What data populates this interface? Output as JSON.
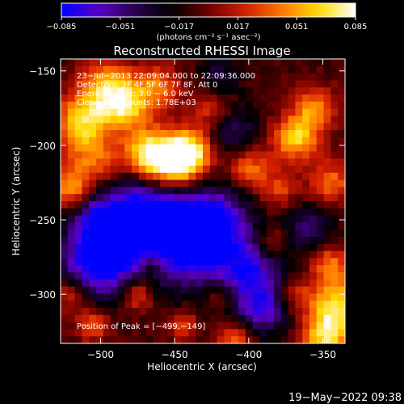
{
  "chart_data": {
    "type": "heatmap",
    "title": "Reconstructed RHESSI Image",
    "xlabel": "Heliocentric X (arcsec)",
    "ylabel": "Heliocentric Y (arcsec)",
    "xlim": [
      -527,
      -335
    ],
    "ylim": [
      -333,
      -142
    ],
    "x_ticks": [
      -500,
      -450,
      -400,
      -350
    ],
    "x_tick_labels": [
      "−500",
      "−450",
      "−400",
      "−350"
    ],
    "y_ticks": [
      -150,
      -200,
      -250,
      -300
    ],
    "y_tick_labels": [
      "−150",
      "−200",
      "−250",
      "−300"
    ],
    "colorbar": {
      "range": [
        -0.085,
        0.085
      ],
      "ticks": [
        -0.085,
        -0.051,
        -0.017,
        0.017,
        0.051,
        0.085
      ],
      "tick_labels": [
        "−0.085",
        "−0.051",
        "−0.017",
        "0.017",
        "0.051",
        "0.085"
      ],
      "label": "(photons cm⁻² s⁻¹ asec⁻²)",
      "colors": [
        "#0000ff",
        "#5a00c8",
        "#2a0050",
        "#000000",
        "#6e0000",
        "#d21e00",
        "#ff7800",
        "#ffdc00",
        "#ffffff"
      ]
    },
    "annotations": [
      "23−Jul−2013 22:09:04.000 to 22:09:36.000",
      "Detectors: 3F 4F 5F 6F 7F 8F, Att 0",
      "Energy Range: 3.0 − 6.0 keV",
      "Clean    Total counts: 1.78E+03"
    ],
    "peak_label": "Position of Peak = [−499,−149]",
    "peak": [
      -499,
      -149
    ],
    "hot_spots": [
      {
        "x": -453,
        "y": -213,
        "amp": 1.0,
        "r": 14
      },
      {
        "x": -440,
        "y": -205,
        "amp": 0.65,
        "r": 10
      },
      {
        "x": -470,
        "y": -205,
        "amp": 0.55,
        "r": 10
      },
      {
        "x": -495,
        "y": -165,
        "amp": 0.7,
        "r": 14
      },
      {
        "x": -515,
        "y": -185,
        "amp": 0.55,
        "r": 12
      },
      {
        "x": -505,
        "y": -210,
        "amp": 0.45,
        "r": 14
      },
      {
        "x": -480,
        "y": -175,
        "amp": 0.45,
        "r": 12
      },
      {
        "x": -460,
        "y": -160,
        "amp": 0.4,
        "r": 10
      },
      {
        "x": -425,
        "y": -175,
        "amp": 0.35,
        "r": 10
      },
      {
        "x": -400,
        "y": -215,
        "amp": 0.45,
        "r": 10
      },
      {
        "x": -368,
        "y": -195,
        "amp": 0.65,
        "r": 11
      },
      {
        "x": -355,
        "y": -175,
        "amp": 0.5,
        "r": 10
      },
      {
        "x": -345,
        "y": -225,
        "amp": 0.45,
        "r": 10
      },
      {
        "x": -380,
        "y": -230,
        "amp": 0.35,
        "r": 9
      },
      {
        "x": -340,
        "y": -310,
        "amp": 0.75,
        "r": 14
      },
      {
        "x": -350,
        "y": -330,
        "amp": 0.55,
        "r": 10
      },
      {
        "x": -345,
        "y": -280,
        "amp": 0.45,
        "r": 9
      },
      {
        "x": -520,
        "y": -230,
        "amp": 0.5,
        "r": 9
      },
      {
        "x": -520,
        "y": -300,
        "amp": 0.4,
        "r": 8
      },
      {
        "x": -475,
        "y": -300,
        "amp": 0.45,
        "r": 8
      },
      {
        "x": -465,
        "y": -280,
        "amp": 0.35,
        "r": 7
      },
      {
        "x": -505,
        "y": -320,
        "amp": 0.4,
        "r": 8
      },
      {
        "x": -445,
        "y": -320,
        "amp": 0.35,
        "r": 7
      },
      {
        "x": -410,
        "y": -330,
        "amp": 0.45,
        "r": 8
      },
      {
        "x": -420,
        "y": -300,
        "amp": 0.3,
        "r": 7
      },
      {
        "x": -370,
        "y": -300,
        "amp": 0.3,
        "r": 8
      },
      {
        "x": -385,
        "y": -265,
        "amp": 0.3,
        "r": 8
      }
    ],
    "cold_spots": [
      {
        "x": -480,
        "y": -260,
        "amp": 0.7,
        "r": 22
      },
      {
        "x": -440,
        "y": -265,
        "amp": 0.7,
        "r": 20
      },
      {
        "x": -505,
        "y": -280,
        "amp": 0.6,
        "r": 16
      },
      {
        "x": -460,
        "y": -240,
        "amp": 0.5,
        "r": 18
      },
      {
        "x": -400,
        "y": -285,
        "amp": 0.6,
        "r": 16
      },
      {
        "x": -420,
        "y": -250,
        "amp": 0.5,
        "r": 16
      },
      {
        "x": -390,
        "y": -310,
        "amp": 0.5,
        "r": 12
      },
      {
        "x": -500,
        "y": -250,
        "amp": 0.45,
        "r": 12
      },
      {
        "x": -410,
        "y": -190,
        "amp": 0.35,
        "r": 12
      },
      {
        "x": -360,
        "y": -255,
        "amp": 0.35,
        "r": 12
      },
      {
        "x": -420,
        "y": -155,
        "amp": 0.3,
        "r": 10
      }
    ]
  },
  "footer": {
    "timestamp": "19−May−2022 09:38"
  }
}
